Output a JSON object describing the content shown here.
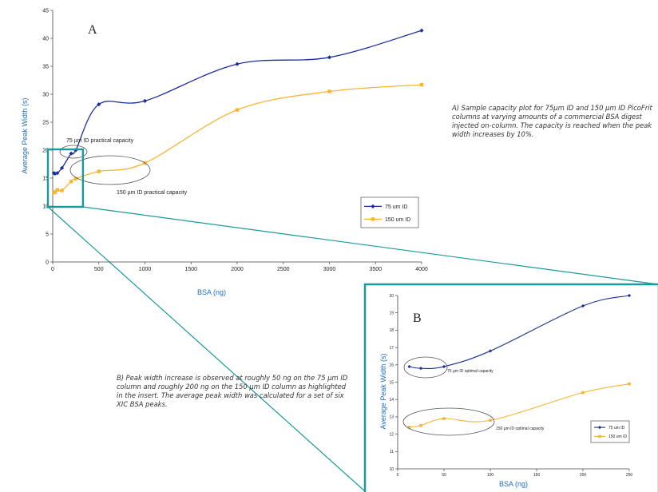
{
  "colors": {
    "series_75": "#1a2f9a",
    "series_150": "#f8b534",
    "axis_label": "#1f6fc0",
    "highlight": "#1a9a9a",
    "ellipse": "#555555"
  },
  "captions": {
    "a": "A) Sample capacity plot for 75µm ID and 150 µm ID PicoFrit columns at varying amounts of a commercial BSA digest injected on-column. The capacity is reached when the peak width increases by 10%.",
    "b": "B) Peak width increase is observed at roughly 50 ng on the 75 µm ID column and roughly 200 ng on the 150 µm ID column as highlighted in the insert. The average peak width was calculated for a set of six XIC BSA peaks."
  },
  "chart_data": [
    {
      "type": "line",
      "panel_label": "A",
      "xlabel": "BSA (ng)",
      "ylabel": "Average Peak Width (s)",
      "xlim": [
        0,
        4000
      ],
      "ylim": [
        0,
        45
      ],
      "xticks": [
        0,
        500,
        1000,
        1500,
        2000,
        2500,
        3000,
        3500,
        4000
      ],
      "yticks": [
        0,
        5,
        10,
        15,
        20,
        25,
        30,
        35,
        40,
        45
      ],
      "grid": false,
      "legend_position": "right",
      "series": [
        {
          "name": "75 um ID",
          "marker": "diamond",
          "x": [
            12.5,
            25,
            50,
            100,
            200,
            250,
            500,
            1000,
            2000,
            3000,
            4000
          ],
          "y": [
            15.9,
            15.8,
            15.9,
            16.8,
            19.4,
            20.0,
            28.2,
            28.8,
            35.4,
            36.6,
            41.4
          ]
        },
        {
          "name": "150 um ID",
          "marker": "square",
          "x": [
            12.5,
            25,
            50,
            100,
            200,
            250,
            500,
            1000,
            2000,
            3000,
            4000
          ],
          "y": [
            12.4,
            12.5,
            12.9,
            12.8,
            14.4,
            14.9,
            16.2,
            17.7,
            27.2,
            30.5,
            31.7
          ]
        }
      ],
      "annotations": [
        "75 µm ID practical capacity",
        "150 µm ID practical capacity"
      ]
    },
    {
      "type": "line",
      "panel_label": "B",
      "xlabel": "BSA (ng)",
      "ylabel": "Average Peak Width (s)",
      "xlim": [
        0,
        250
      ],
      "ylim": [
        10,
        20
      ],
      "xticks": [
        0,
        50,
        100,
        150,
        200,
        250
      ],
      "yticks": [
        10,
        11,
        12,
        13,
        14,
        15,
        16,
        17,
        18,
        19,
        20
      ],
      "grid": false,
      "legend_position": "right",
      "series": [
        {
          "name": "75 um ID",
          "marker": "diamond",
          "x": [
            12.5,
            25,
            50,
            100,
            200,
            250
          ],
          "y": [
            15.9,
            15.8,
            15.9,
            16.8,
            19.4,
            20.0
          ]
        },
        {
          "name": "150 um ID",
          "marker": "square",
          "x": [
            12.5,
            25,
            50,
            100,
            200,
            250
          ],
          "y": [
            12.4,
            12.5,
            12.9,
            12.8,
            14.4,
            14.9
          ]
        }
      ],
      "annotations": [
        "75 µm ID optimal capacity",
        "150 µm ID optimal capacity"
      ]
    }
  ]
}
